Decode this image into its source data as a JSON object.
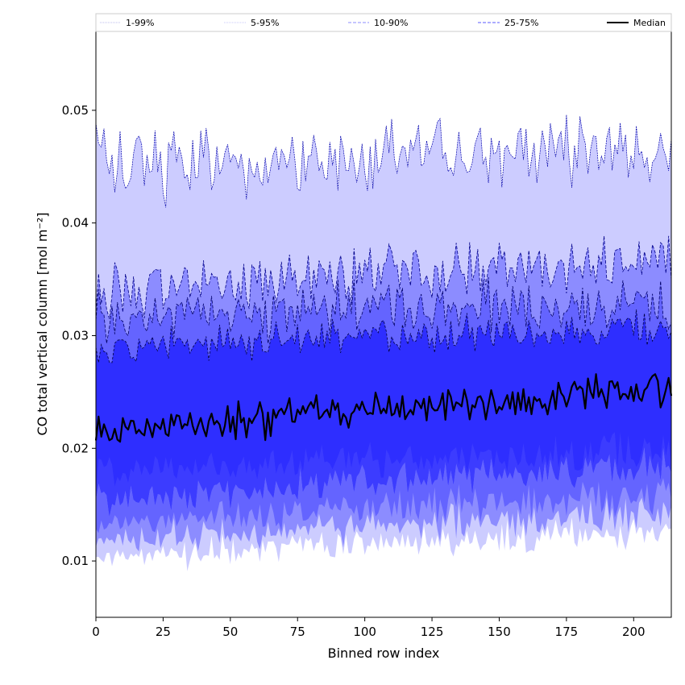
{
  "chart_data": {
    "type": "area",
    "xlabel": "Binned row index",
    "ylabel": "CO total vertical column [mol m⁻²]",
    "xlim": [
      0,
      214
    ],
    "ylim": [
      0.005,
      0.057
    ],
    "xticks": [
      0,
      25,
      50,
      75,
      100,
      125,
      150,
      175,
      200
    ],
    "yticks": [
      0.01,
      0.02,
      0.03,
      0.04,
      0.05
    ],
    "ytick_labels": [
      "0.01",
      "0.02",
      "0.03",
      "0.04",
      "0.05"
    ],
    "grid": false,
    "legend_position": "top",
    "legend": [
      {
        "label": "1-99%",
        "color": "#e6e6fa",
        "style": "dotted"
      },
      {
        "label": "5-95%",
        "color": "#c8c8fa",
        "style": "dotted"
      },
      {
        "label": "10-90%",
        "color": "#8c8cff",
        "style": "dashed"
      },
      {
        "label": "25-75%",
        "color": "#5a5aff",
        "style": "dashed"
      },
      {
        "label": "Median",
        "color": "#000000",
        "style": "solid"
      }
    ],
    "colors": {
      "band_1_99": "#ffffff",
      "band_5_95": "#ccccff",
      "band_10_90": "#8c8cff",
      "band_25_75": "#6464ff",
      "band_inner": "#2e2eff",
      "median": "#000000"
    },
    "series_profiles": {
      "upper_95": {
        "start": 0.045,
        "end": 0.047,
        "amplitude": 0.004
      },
      "upper_90": {
        "start": 0.034,
        "end": 0.037,
        "amplitude": 0.003
      },
      "upper_75": {
        "start": 0.032,
        "end": 0.033,
        "amplitude": 0.003
      },
      "upper_inner": {
        "start": 0.029,
        "end": 0.031,
        "amplitude": 0.002
      },
      "median": {
        "start": 0.0215,
        "end": 0.0255,
        "amplitude": 0.002
      },
      "lower_inner": {
        "start": 0.018,
        "end": 0.02,
        "amplitude": 0.002
      },
      "lower_25": {
        "start": 0.0155,
        "end": 0.019,
        "amplitude": 0.002
      },
      "lower_10": {
        "start": 0.0135,
        "end": 0.016,
        "amplitude": 0.002
      },
      "lower_5": {
        "start": 0.012,
        "end": 0.0145,
        "amplitude": 0.002
      },
      "lower_1": {
        "start": 0.0105,
        "end": 0.013,
        "amplitude": 0.002
      }
    }
  }
}
